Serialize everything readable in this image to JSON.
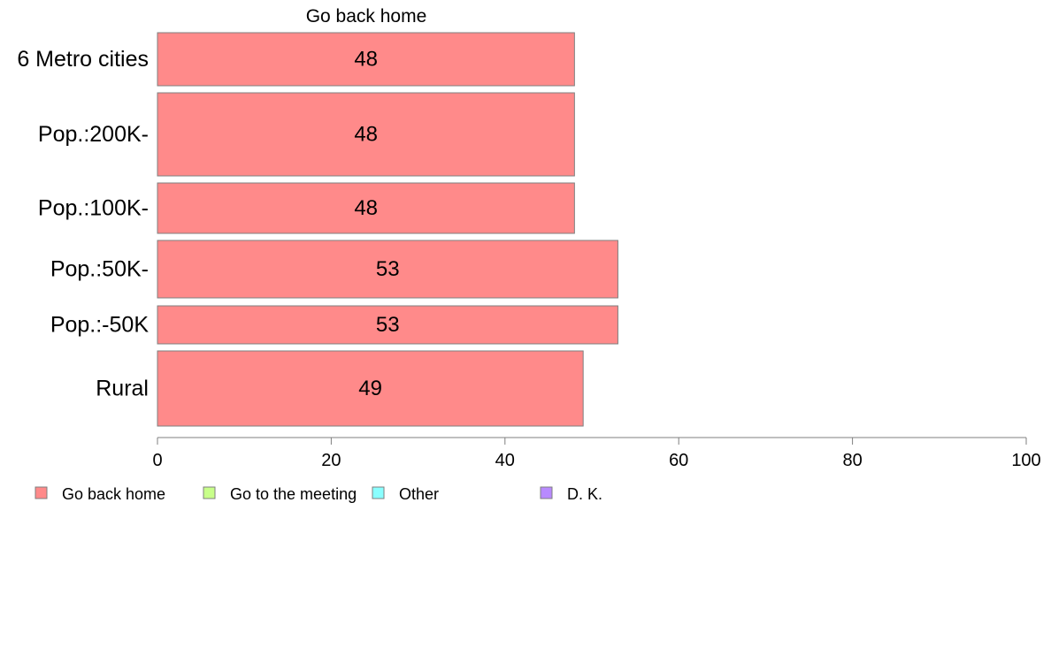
{
  "chart_data": {
    "type": "bar",
    "orientation": "horizontal",
    "title": "Go back home",
    "categories": [
      "6 Metro cities",
      "Pop.:200K-",
      "Pop.:100K-",
      "Pop.:50K-",
      "Pop.:-50K",
      "Rural"
    ],
    "series": [
      {
        "name": "Go back home",
        "values": [
          48,
          48,
          48,
          53,
          53,
          49
        ]
      }
    ],
    "xlim": [
      0,
      100
    ],
    "xticks": [
      0,
      20,
      40,
      60,
      80,
      100
    ],
    "xlabel": "",
    "ylabel": "",
    "grid": false,
    "legend": {
      "position": "bottom-left",
      "items": [
        {
          "label": "Go back home",
          "color": "#ff8a8a"
        },
        {
          "label": "Go to the meeting",
          "color": "#c8ff8a"
        },
        {
          "label": "Other",
          "color": "#8affff"
        },
        {
          "label": "D. K.",
          "color": "#b88aff"
        }
      ]
    },
    "bar_color": "#ff8a8a",
    "bar_border_color": "#7f7f7f"
  }
}
